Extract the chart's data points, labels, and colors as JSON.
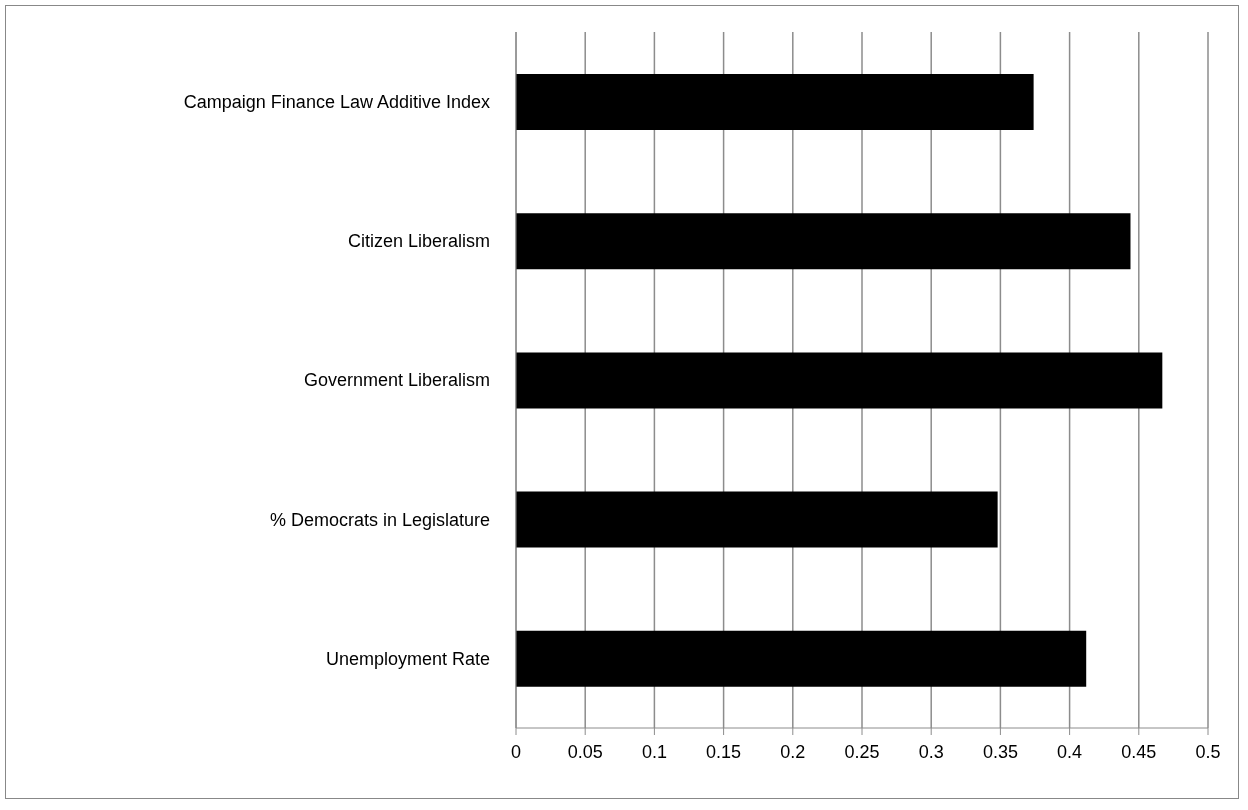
{
  "chart_data": {
    "type": "bar",
    "orientation": "horizontal",
    "categories": [
      "Campaign Finance Law Additive Index",
      "Citizen Liberalism",
      "Government Liberalism",
      "% Democrats in Legislature",
      "Unemployment Rate"
    ],
    "values": [
      0.374,
      0.444,
      0.467,
      0.348,
      0.412
    ],
    "color": "#000000",
    "xlim": [
      0,
      0.5
    ],
    "xticks": [
      0,
      0.05,
      0.1,
      0.15,
      0.2,
      0.25,
      0.3,
      0.35,
      0.4,
      0.45,
      0.5
    ],
    "grid": "x",
    "legend": false
  }
}
